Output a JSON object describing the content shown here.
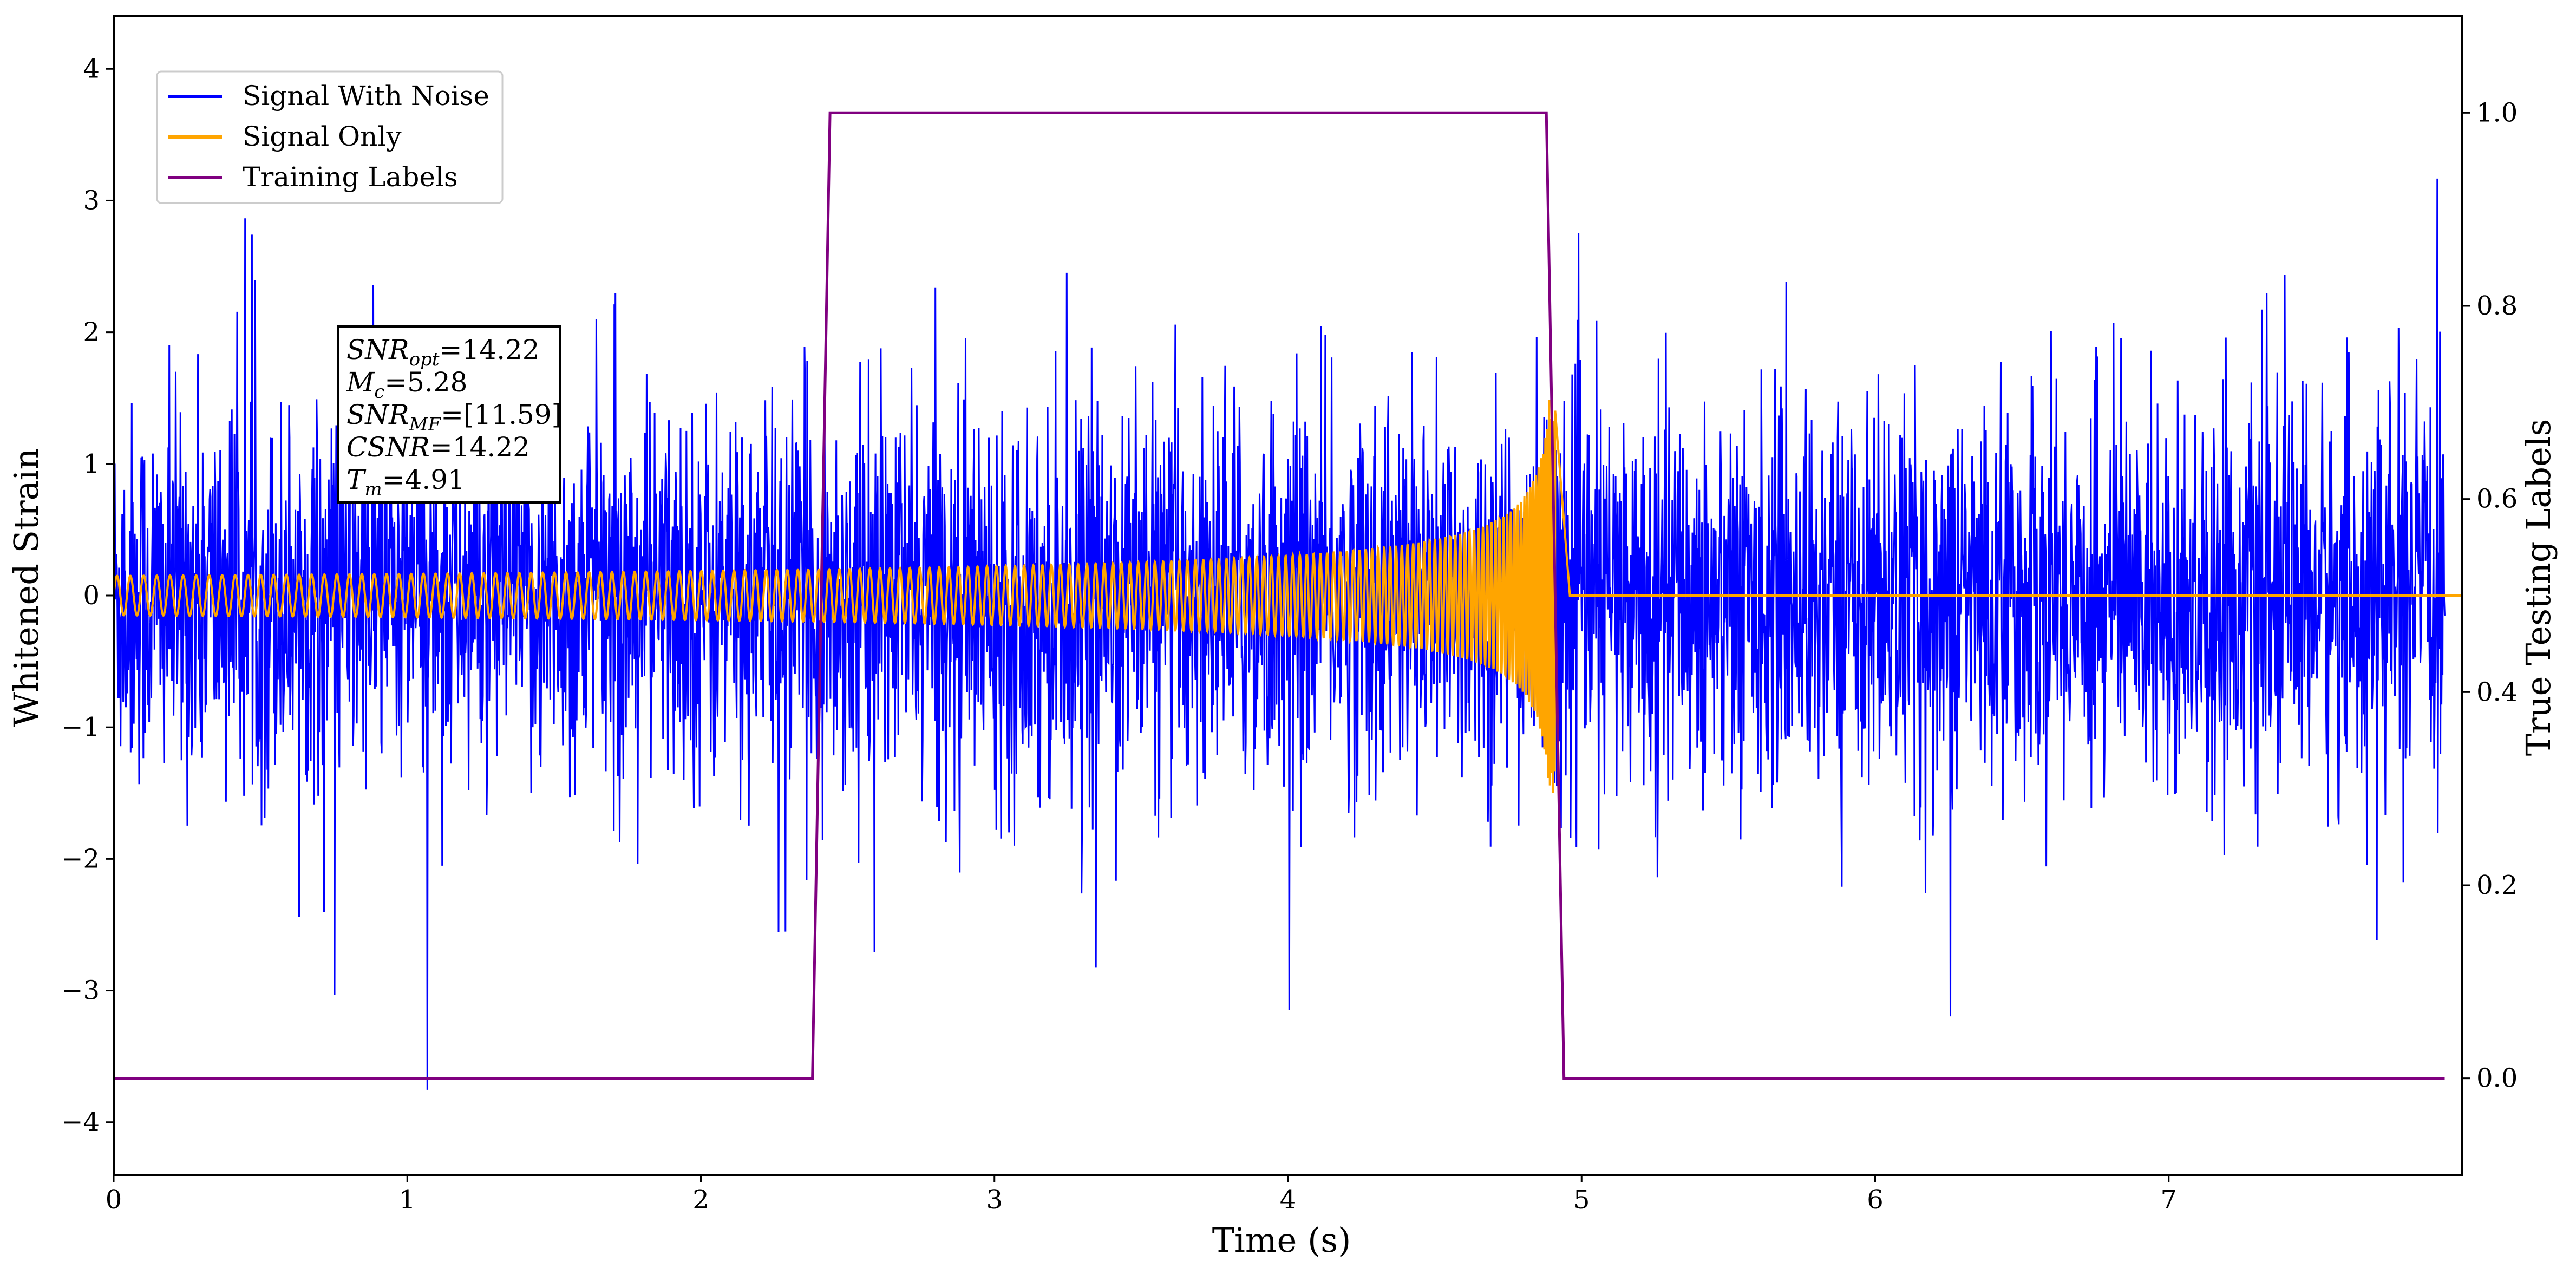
{
  "chart_data": {
    "type": "line",
    "xlabel": "Time (s)",
    "ylabel": "Whitened Strain",
    "y2label": "True Testing Labels",
    "xlim": [
      0,
      8.0
    ],
    "ylim": [
      -4.4,
      4.4
    ],
    "y2lim": [
      -0.1,
      1.1
    ],
    "x_ticks": [
      0,
      1,
      2,
      3,
      4,
      5,
      6,
      7
    ],
    "x_tick_labels": [
      "0",
      "1",
      "2",
      "3",
      "4",
      "5",
      "6",
      "7"
    ],
    "y_ticks": [
      -4,
      -3,
      -2,
      -1,
      0,
      1,
      2,
      3,
      4
    ],
    "y_tick_labels": [
      "−4",
      "−3",
      "−2",
      "−1",
      "0",
      "1",
      "2",
      "3",
      "4"
    ],
    "y2_ticks": [
      0.0,
      0.2,
      0.4,
      0.6,
      0.8,
      1.0
    ],
    "y2_tick_labels": [
      "0.0",
      "0.2",
      "0.4",
      "0.6",
      "0.8",
      "1.0"
    ],
    "grid": false,
    "legend_position": "upper-left",
    "series": [
      {
        "name": "Signal With Noise",
        "color": "#0000ff",
        "axis": "left",
        "description": "dense noisy strain, roughly spanning -4 to 4 over 0-8 s",
        "approx_range": [
          -4.0,
          4.0
        ]
      },
      {
        "name": "Signal Only",
        "color": "#ffa500",
        "axis": "left",
        "description": "chirp waveform, amplitude ~0.15 at t=0 growing to ~1.5 near merger at t=4.91, then ~0",
        "chirp": {
          "t_start": 0,
          "t_merge": 4.91,
          "t_end": 8.0,
          "amp_start": 0.15,
          "amp_peak": 1.5
        }
      },
      {
        "name": "Training Labels",
        "color": "#800080",
        "axis": "right",
        "points": [
          {
            "x": 0.0,
            "y": 0.0
          },
          {
            "x": 2.38,
            "y": 0.0
          },
          {
            "x": 2.44,
            "y": 1.0
          },
          {
            "x": 4.88,
            "y": 1.0
          },
          {
            "x": 4.94,
            "y": 0.0
          },
          {
            "x": 7.94,
            "y": 0.0
          }
        ]
      }
    ],
    "annotation": {
      "lines": [
        {
          "main": "SNR",
          "sub": "opt",
          "rest": "=14.22"
        },
        {
          "main": "M",
          "sub": "c",
          "rest": "=5.28"
        },
        {
          "main": "SNR",
          "sub": "MF",
          "rest": "=[11.59]"
        },
        {
          "main": "CSNR",
          "sub": "",
          "rest": "=14.22"
        },
        {
          "main": "T",
          "sub": "m",
          "rest": "=4.91"
        }
      ]
    }
  }
}
